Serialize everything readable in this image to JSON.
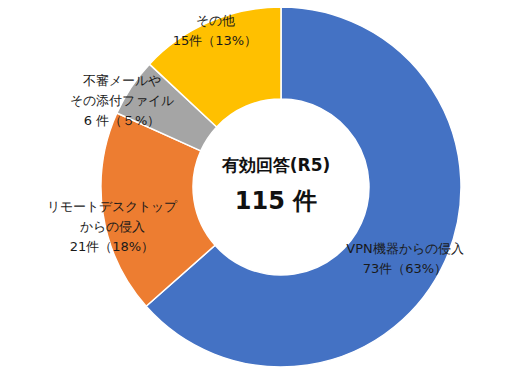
{
  "chart_data": {
    "type": "pie",
    "categories": [
      "VPN機器からの侵入",
      "リモートデスクトップ\nからの侵入",
      "不審メールや\nその添付ファイル",
      "その他"
    ],
    "values": [
      73,
      21,
      6,
      15
    ],
    "value_labels": [
      "73件（63%）",
      "21件（18%）",
      "6 件（５%）",
      "15件（13%）"
    ],
    "colors": [
      "#4472c4",
      "#ed7d31",
      "#a5a5a5",
      "#ffc000"
    ],
    "data_labels": true,
    "annotations": [
      "有効回答(R5)",
      "115 件"
    ]
  }
}
